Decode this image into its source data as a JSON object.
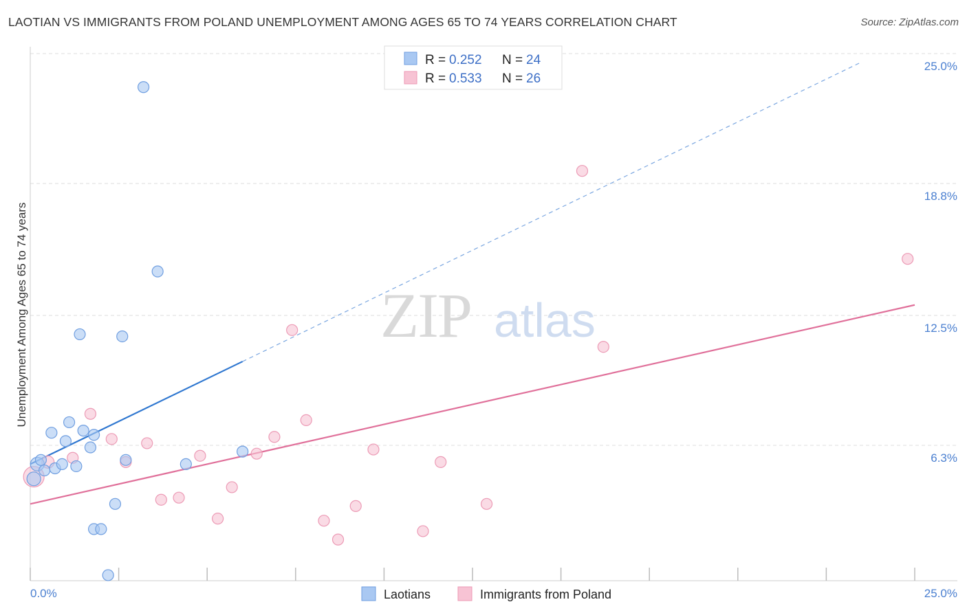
{
  "header": {
    "title": "LAOTIAN VS IMMIGRANTS FROM POLAND UNEMPLOYMENT AMONG AGES 65 TO 74 YEARS CORRELATION CHART",
    "source": "Source: ZipAtlas.com"
  },
  "watermark": {
    "zip": "ZIP",
    "atlas": "atlas"
  },
  "legend_top": {
    "r_label": "R =",
    "n_label": "N =",
    "rows": [
      {
        "r": "0.252",
        "n": "24"
      },
      {
        "r": "0.533",
        "n": "26"
      }
    ]
  },
  "legend_bottom": {
    "items": [
      "Laotians",
      "Immigrants from Poland"
    ]
  },
  "chart_data": {
    "type": "scatter",
    "title": "LAOTIAN VS IMMIGRANTS FROM POLAND UNEMPLOYMENT AMONG AGES 65 TO 74 YEARS CORRELATION CHART",
    "xlabel": "",
    "ylabel": "Unemployment Among Ages 65 to 74 years",
    "xlim": [
      0,
      25
    ],
    "ylim": [
      0,
      25
    ],
    "x_tick_labels": [
      "0.0%",
      "25.0%"
    ],
    "y_ticks": [
      {
        "value": 6.3,
        "label": "6.3%"
      },
      {
        "value": 12.5,
        "label": "12.5%"
      },
      {
        "value": 18.8,
        "label": "18.8%"
      },
      {
        "value": 25.0,
        "label": "25.0%"
      }
    ],
    "colors": {
      "laotians_fill": "#a9c8f2",
      "laotians_stroke": "#6f9ee0",
      "laotians_line": "#2f77d0",
      "poland_fill": "#f7c3d4",
      "poland_stroke": "#ec9ab5",
      "poland_line": "#e0709a",
      "grid": "#dddddd",
      "axis_text": "#4a7fd0"
    },
    "series": [
      {
        "name": "Laotians",
        "R": 0.252,
        "N": 24,
        "trend": {
          "x0": 0.0,
          "y0": 5.4,
          "x1": 6.0,
          "y1": 10.3,
          "dash_to_x": 23.5,
          "dash_to_y": 24.6
        },
        "points": [
          {
            "x": 0.2,
            "y": 5.4,
            "size": 10
          },
          {
            "x": 0.3,
            "y": 5.6,
            "size": 8
          },
          {
            "x": 0.4,
            "y": 5.1,
            "size": 8
          },
          {
            "x": 0.6,
            "y": 6.9,
            "size": 8
          },
          {
            "x": 0.7,
            "y": 5.2,
            "size": 8
          },
          {
            "x": 0.9,
            "y": 5.4,
            "size": 8
          },
          {
            "x": 1.0,
            "y": 6.5,
            "size": 8
          },
          {
            "x": 1.1,
            "y": 7.4,
            "size": 8
          },
          {
            "x": 1.3,
            "y": 5.3,
            "size": 8
          },
          {
            "x": 1.4,
            "y": 11.6,
            "size": 8
          },
          {
            "x": 1.5,
            "y": 7.0,
            "size": 8
          },
          {
            "x": 1.7,
            "y": 6.2,
            "size": 8
          },
          {
            "x": 1.8,
            "y": 2.3,
            "size": 8
          },
          {
            "x": 1.8,
            "y": 6.8,
            "size": 8
          },
          {
            "x": 2.0,
            "y": 2.3,
            "size": 8
          },
          {
            "x": 2.2,
            "y": 0.1,
            "size": 8
          },
          {
            "x": 2.4,
            "y": 3.5,
            "size": 8
          },
          {
            "x": 2.6,
            "y": 11.5,
            "size": 8
          },
          {
            "x": 2.7,
            "y": 5.6,
            "size": 8
          },
          {
            "x": 3.2,
            "y": 23.4,
            "size": 8
          },
          {
            "x": 3.6,
            "y": 14.6,
            "size": 8
          },
          {
            "x": 4.4,
            "y": 5.4,
            "size": 8
          },
          {
            "x": 6.0,
            "y": 6.0,
            "size": 8
          },
          {
            "x": 0.1,
            "y": 4.7,
            "size": 10
          }
        ]
      },
      {
        "name": "Immigrants from Poland",
        "R": 0.533,
        "N": 26,
        "trend": {
          "x0": 0.0,
          "y0": 3.5,
          "x1": 25.0,
          "y1": 13.0
        },
        "points": [
          {
            "x": 0.1,
            "y": 4.8,
            "size": 15
          },
          {
            "x": 0.5,
            "y": 5.5,
            "size": 9
          },
          {
            "x": 1.2,
            "y": 5.7,
            "size": 8
          },
          {
            "x": 1.7,
            "y": 7.8,
            "size": 8
          },
          {
            "x": 2.3,
            "y": 6.6,
            "size": 8
          },
          {
            "x": 2.7,
            "y": 5.5,
            "size": 8
          },
          {
            "x": 3.3,
            "y": 6.4,
            "size": 8
          },
          {
            "x": 3.7,
            "y": 3.7,
            "size": 8
          },
          {
            "x": 4.2,
            "y": 3.8,
            "size": 8
          },
          {
            "x": 4.8,
            "y": 5.8,
            "size": 8
          },
          {
            "x": 5.3,
            "y": 2.8,
            "size": 8
          },
          {
            "x": 5.7,
            "y": 4.3,
            "size": 8
          },
          {
            "x": 6.4,
            "y": 5.9,
            "size": 8
          },
          {
            "x": 6.9,
            "y": 6.7,
            "size": 8
          },
          {
            "x": 7.4,
            "y": 11.8,
            "size": 8
          },
          {
            "x": 7.8,
            "y": 7.5,
            "size": 8
          },
          {
            "x": 8.3,
            "y": 2.7,
            "size": 8
          },
          {
            "x": 8.7,
            "y": 1.8,
            "size": 8
          },
          {
            "x": 9.2,
            "y": 3.4,
            "size": 8
          },
          {
            "x": 9.7,
            "y": 6.1,
            "size": 8
          },
          {
            "x": 11.1,
            "y": 2.2,
            "size": 8
          },
          {
            "x": 11.6,
            "y": 5.5,
            "size": 8
          },
          {
            "x": 12.9,
            "y": 3.5,
            "size": 8
          },
          {
            "x": 15.6,
            "y": 19.4,
            "size": 8
          },
          {
            "x": 16.2,
            "y": 11.0,
            "size": 8
          },
          {
            "x": 24.8,
            "y": 15.2,
            "size": 8
          }
        ]
      }
    ]
  }
}
